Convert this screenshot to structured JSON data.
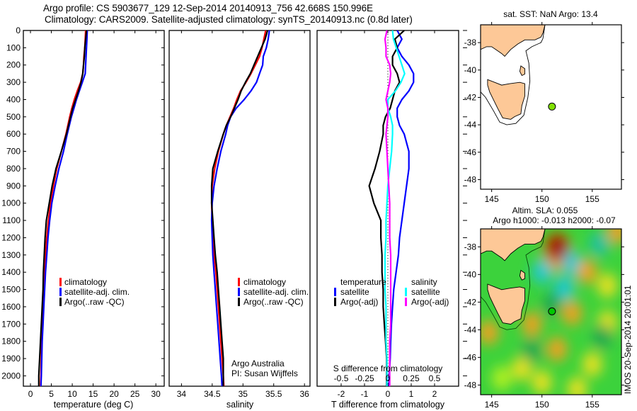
{
  "header": {
    "line1": "Argo profile: CS 5903677_129 12-Sep-2014 20140913_756 42.668S 150.996E",
    "line2": "Climatology: CARS2009. Satellite-adjusted climatology: synTS_20140913.nc (0.8d later)"
  },
  "footer_stamp": "IMOS 20-Sep-2014 20:01:01",
  "colors": {
    "climatology": "#ff0000",
    "satellite": "#0000ff",
    "argo": "#000000",
    "sal_satellite": "#00ffff",
    "sal_argo": "#ff00ff",
    "land": "#fdc897",
    "float_marker": "#80e000"
  },
  "chart_data": [
    {
      "id": "temperature",
      "type": "line",
      "xlabel": "temperature (deg C)",
      "ylabel": "",
      "xlim": [
        -1.7,
        32
      ],
      "ylim": [
        2060,
        0
      ],
      "xticks": [
        0,
        5,
        10,
        15,
        20,
        25,
        30
      ],
      "yticks": [
        0,
        100,
        200,
        300,
        400,
        500,
        600,
        700,
        800,
        900,
        1000,
        1100,
        1200,
        1300,
        1400,
        1500,
        1600,
        1700,
        1800,
        1900,
        2000
      ],
      "depth": [
        0,
        50,
        100,
        150,
        200,
        250,
        300,
        350,
        400,
        450,
        500,
        600,
        700,
        800,
        900,
        1000,
        1100,
        1200,
        1300,
        1400,
        1500,
        1600,
        1700,
        1800,
        1900,
        2000,
        2060
      ],
      "series": [
        {
          "name": "climatology",
          "color": "#ff0000",
          "values": [
            13.2,
            13.1,
            13.0,
            12.8,
            12.7,
            12.5,
            12.0,
            11.2,
            10.5,
            9.9,
            9.4,
            8.5,
            7.4,
            6.3,
            5.5,
            4.8,
            4.3,
            3.9,
            3.6,
            3.4,
            3.2,
            3.0,
            2.8,
            2.7,
            2.6,
            2.5,
            2.4
          ]
        },
        {
          "name": "satellite-adj. clim.",
          "color": "#0000ff",
          "values": [
            13.6,
            13.5,
            13.4,
            13.3,
            13.2,
            13.1,
            12.4,
            11.7,
            11.0,
            10.4,
            9.8,
            8.8,
            7.9,
            6.8,
            5.9,
            5.1,
            4.6,
            4.2,
            3.9,
            3.6,
            3.4,
            3.2,
            3.0,
            2.8,
            2.7,
            2.6,
            2.5
          ]
        },
        {
          "name": "Argo(..raw -QC)",
          "color": "#000000",
          "values": [
            13.4,
            13.2,
            13.0,
            12.9,
            12.7,
            12.5,
            12.1,
            11.5,
            10.8,
            10.1,
            9.6,
            8.6,
            7.4,
            6.1,
            5.2,
            4.5,
            3.8,
            3.5,
            3.3,
            3.1,
            3.0,
            2.8,
            2.6,
            2.4,
            2.2,
            2.0,
            2.0
          ]
        }
      ],
      "legend": [
        "climatology",
        "satellite-adj. clim.",
        "Argo(..raw -QC)"
      ],
      "legend_placement": "lower-center"
    },
    {
      "id": "salinity",
      "type": "line",
      "xlabel": "salinity",
      "xlim": [
        33.8,
        36.09
      ],
      "ylim": [
        2060,
        0
      ],
      "xticks": [
        34,
        34.5,
        35,
        35.5,
        36
      ],
      "depth": [
        0,
        50,
        100,
        150,
        200,
        250,
        300,
        350,
        400,
        450,
        500,
        550,
        600,
        700,
        800,
        900,
        1000,
        1100,
        1200,
        1300,
        1400,
        1500,
        1600,
        1700,
        1800,
        1900,
        2000,
        2060
      ],
      "series": [
        {
          "name": "climatology",
          "color": "#ff0000",
          "values": [
            35.37,
            35.34,
            35.31,
            35.27,
            35.2,
            35.13,
            35.05,
            34.96,
            34.9,
            34.85,
            34.79,
            34.73,
            34.68,
            34.6,
            34.54,
            34.5,
            34.49,
            34.5,
            34.51,
            34.53,
            34.56,
            34.58,
            34.6,
            34.62,
            34.64,
            34.66,
            34.68,
            34.69
          ]
        },
        {
          "name": "satellite-adj. clim.",
          "color": "#0000ff",
          "values": [
            35.43,
            35.41,
            35.38,
            35.33,
            35.32,
            35.27,
            35.22,
            35.13,
            35.02,
            34.89,
            34.8,
            34.75,
            34.72,
            34.64,
            34.58,
            34.53,
            34.5,
            34.49,
            34.5,
            34.51,
            34.53,
            34.55,
            34.57,
            34.59,
            34.61,
            34.63,
            34.65,
            34.66
          ]
        },
        {
          "name": "Argo(..raw -QC)",
          "color": "#000000",
          "values": [
            35.4,
            35.36,
            35.3,
            35.24,
            35.18,
            35.12,
            35.04,
            34.97,
            34.92,
            34.86,
            34.8,
            34.73,
            34.68,
            34.59,
            34.51,
            34.49,
            34.49,
            34.51,
            34.53,
            34.55,
            34.58,
            34.6,
            34.62,
            34.64,
            34.66,
            34.68,
            34.68,
            34.68
          ]
        }
      ],
      "legend": [
        "climatology",
        "satellite-adj. clim.",
        "Argo(..raw -QC)"
      ],
      "annotation": [
        "Argo Australia",
        "PI: Susan Wijffels"
      ]
    },
    {
      "id": "differences",
      "type": "line",
      "xlabel": "T difference from climatology",
      "xlabel_top": "S difference from climatology",
      "xlim": [
        -3.03,
        3.03
      ],
      "xlim_top": [
        -0.758,
        0.758
      ],
      "ylim": [
        2060,
        0
      ],
      "xticks": [
        -2,
        -1,
        0,
        1,
        2
      ],
      "xticks_top": [
        -0.5,
        -0.25,
        0,
        0.25,
        0.5
      ],
      "xticklabels_top": [
        "-0.5",
        "-0.25",
        "0",
        "0.25",
        "0.5"
      ],
      "depth": [
        0,
        50,
        100,
        150,
        200,
        250,
        300,
        350,
        400,
        450,
        500,
        550,
        600,
        700,
        800,
        900,
        1000,
        1100,
        1200,
        1300,
        1400,
        1500,
        1600,
        1700,
        1800,
        1900,
        2000,
        2060
      ],
      "series": [
        {
          "name": "temperature satellite",
          "axis": "T",
          "color": "#0000ff",
          "values": [
            0.4,
            0.6,
            0.4,
            0.6,
            0.9,
            1.1,
            1.1,
            0.9,
            0.6,
            0.4,
            0.4,
            0.5,
            0.7,
            0.9,
            0.9,
            0.8,
            0.7,
            0.6,
            0.5,
            0.45,
            0.35,
            0.25,
            0.2,
            0.15,
            0.12,
            0.1,
            0.05,
            0.05
          ]
        },
        {
          "name": "temperature Argo(-adj)",
          "axis": "T",
          "color": "#000000",
          "values": [
            0.7,
            0.3,
            0.4,
            0.2,
            0.2,
            0.4,
            0.5,
            0.3,
            0.2,
            0.1,
            -0.1,
            -0.2,
            -0.2,
            -0.35,
            -0.55,
            -0.8,
            -0.6,
            -0.3,
            -0.3,
            -0.25,
            -0.25,
            -0.2,
            -0.2,
            -0.15,
            -0.1,
            -0.05,
            -0.05,
            -0.05
          ]
        },
        {
          "name": "salinity satellite",
          "axis": "S",
          "color": "#00ffff",
          "values": [
            0.05,
            0.06,
            0.09,
            0.12,
            0.15,
            0.18,
            0.14,
            0.08,
            0.0,
            0.0,
            0.03,
            0.05,
            0.05,
            0.04,
            0.02,
            0.0,
            -0.01,
            -0.02,
            -0.02,
            -0.03,
            -0.03,
            -0.03,
            -0.02,
            -0.02,
            -0.02,
            -0.01,
            -0.01,
            -0.01
          ]
        },
        {
          "name": "salinity Argo(-adj)",
          "axis": "S",
          "color": "#ff00ff",
          "values": [
            -0.01,
            -0.03,
            -0.02,
            -0.02,
            0.02,
            0.03,
            0.02,
            0.0,
            -0.02,
            0.0,
            0.0,
            -0.01,
            -0.02,
            -0.01,
            0.0,
            0.01,
            0.02,
            0.02,
            0.02,
            0.03,
            0.03,
            0.03,
            0.03,
            0.03,
            0.02,
            0.02,
            0.02,
            0.02
          ]
        }
      ],
      "legend_left_title": "temperature",
      "legend_right_title": "salinity",
      "legend": [
        {
          "label": "satellite",
          "color": "#0000ff"
        },
        {
          "label": "Argo(-adj)",
          "color": "#000000"
        },
        {
          "label": "satellite",
          "color": "#00ffff"
        },
        {
          "label": "Argo(-adj)",
          "color": "#ff00ff"
        }
      ]
    },
    {
      "id": "map-sst",
      "type": "scatter",
      "title": "sat. SST: NaN Argo: 13.4",
      "xlim": [
        143.9,
        157.9
      ],
      "ylim": [
        -48.7,
        -36.7
      ],
      "xticks": [
        145,
        150,
        155
      ],
      "yticks": [
        -38,
        -40,
        -42,
        -44,
        -46,
        -48
      ],
      "points": [
        {
          "lon": 150.996,
          "lat": -42.668,
          "color": "#80e000"
        }
      ]
    },
    {
      "id": "map-sla",
      "type": "heatmap",
      "title": "Altim. SLA: 0.055",
      "subtitle": "Argo h1000: -0.013 h2000: -0.07",
      "xlim": [
        143.9,
        157.9
      ],
      "ylim": [
        -48.7,
        -36.7
      ],
      "xticks": [
        145,
        150,
        155
      ],
      "yticks": [
        -38,
        -40,
        -42,
        -44,
        -46,
        -48
      ],
      "points": [
        {
          "lon": 150.996,
          "lat": -42.668,
          "color": "#00c800"
        }
      ],
      "features": [
        {
          "lon": 151.5,
          "lat": -38.0,
          "value": 0.9
        },
        {
          "lon": 153.0,
          "lat": -39.2,
          "value": -0.5
        },
        {
          "lon": 150.0,
          "lat": -39.8,
          "value": -0.5
        },
        {
          "lon": 152.2,
          "lat": -41.0,
          "value": -0.5
        },
        {
          "lon": 155.7,
          "lat": -37.8,
          "value": -0.35
        },
        {
          "lon": 154.5,
          "lat": -39.8,
          "value": 0.45
        },
        {
          "lon": 156.5,
          "lat": -40.8,
          "value": 0.3
        },
        {
          "lon": 153.0,
          "lat": -42.8,
          "value": 0.45
        },
        {
          "lon": 149.0,
          "lat": -43.6,
          "value": 0.4
        },
        {
          "lon": 144.7,
          "lat": -44.2,
          "value": 0.4
        },
        {
          "lon": 151.5,
          "lat": -45.4,
          "value": 0.5
        },
        {
          "lon": 148.0,
          "lat": -46.8,
          "value": 0.25
        },
        {
          "lon": 155.0,
          "lat": -46.5,
          "value": 0.25
        },
        {
          "lon": 156.5,
          "lat": -43.5,
          "value": 0.25
        },
        {
          "lon": 150.0,
          "lat": -47.8,
          "value": 0.2
        },
        {
          "lon": 146.0,
          "lat": -47.5,
          "value": 0.15
        },
        {
          "lon": 153.5,
          "lat": -48.3,
          "value": 0.2
        },
        {
          "lon": 157.5,
          "lat": -36.9,
          "value": 0.4
        },
        {
          "lon": 149.0,
          "lat": -45.5,
          "value": -0.2
        },
        {
          "lon": 151.0,
          "lat": -42.2,
          "value": -0.15
        },
        {
          "lon": 156.0,
          "lat": -44.5,
          "value": -0.15
        }
      ]
    }
  ]
}
